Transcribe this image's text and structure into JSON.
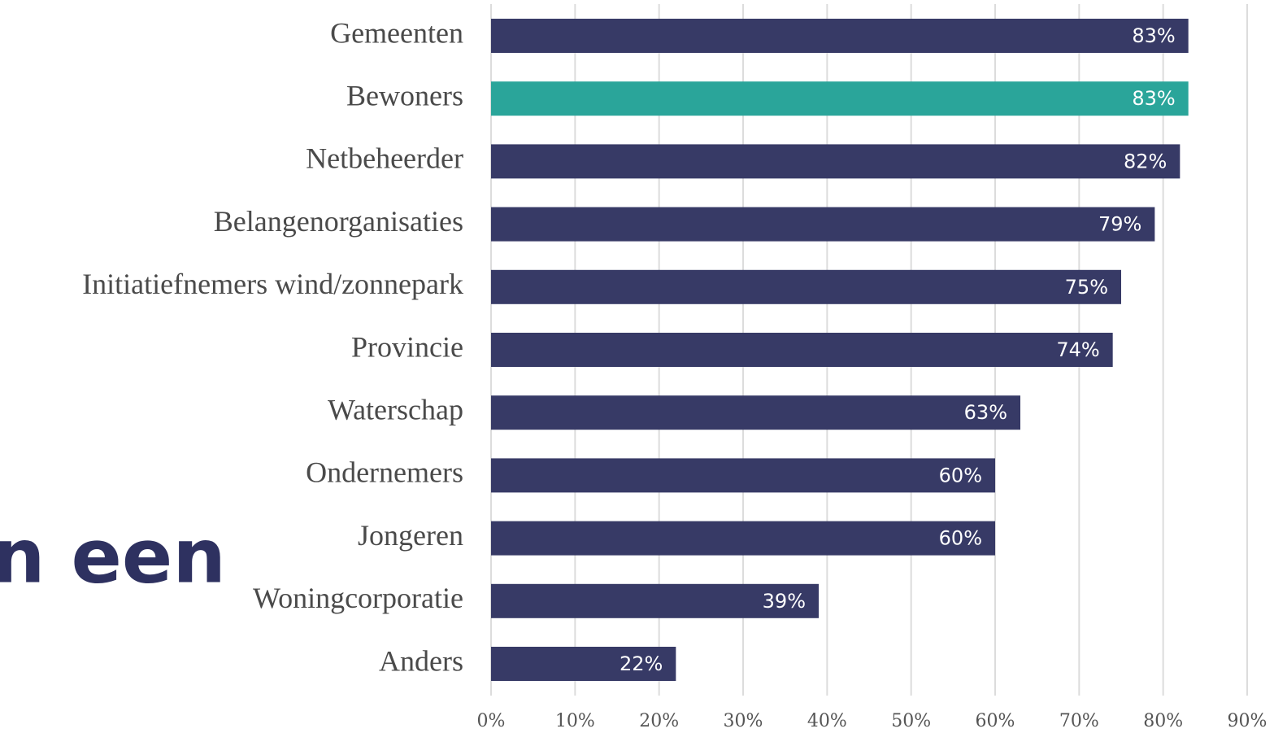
{
  "chart_data": {
    "type": "barh",
    "categories": [
      "Gemeenten",
      "Bewoners",
      "Netbeheerder",
      "Belangenorganisaties",
      "Initiatiefnemers wind/zonnepark",
      "Provincie",
      "Waterschap",
      "Ondernemers",
      "Jongeren",
      "Woningcorporatie",
      "Anders"
    ],
    "values": [
      83,
      83,
      82,
      79,
      75,
      74,
      63,
      60,
      60,
      39,
      22
    ],
    "value_labels": [
      "83%",
      "83%",
      "82%",
      "79%",
      "75%",
      "74%",
      "63%",
      "60%",
      "60%",
      "39%",
      "22%"
    ],
    "colors": [
      "#373a66",
      "#2aa59a",
      "#373a66",
      "#373a66",
      "#373a66",
      "#373a66",
      "#373a66",
      "#373a66",
      "#373a66",
      "#373a66",
      "#373a66"
    ],
    "xlim": [
      0,
      90
    ],
    "xticks": [
      {
        "value": 0,
        "label": "0%"
      },
      {
        "value": 10,
        "label": "10%"
      },
      {
        "value": 20,
        "label": "20%"
      },
      {
        "value": 30,
        "label": "30%"
      },
      {
        "value": 40,
        "label": "40%"
      },
      {
        "value": 50,
        "label": "50%"
      },
      {
        "value": 60,
        "label": "60%"
      },
      {
        "value": 70,
        "label": "70%"
      },
      {
        "value": 80,
        "label": "80%"
      },
      {
        "value": 90,
        "label": "90%"
      }
    ],
    "grid": true,
    "background_text": "n een"
  }
}
